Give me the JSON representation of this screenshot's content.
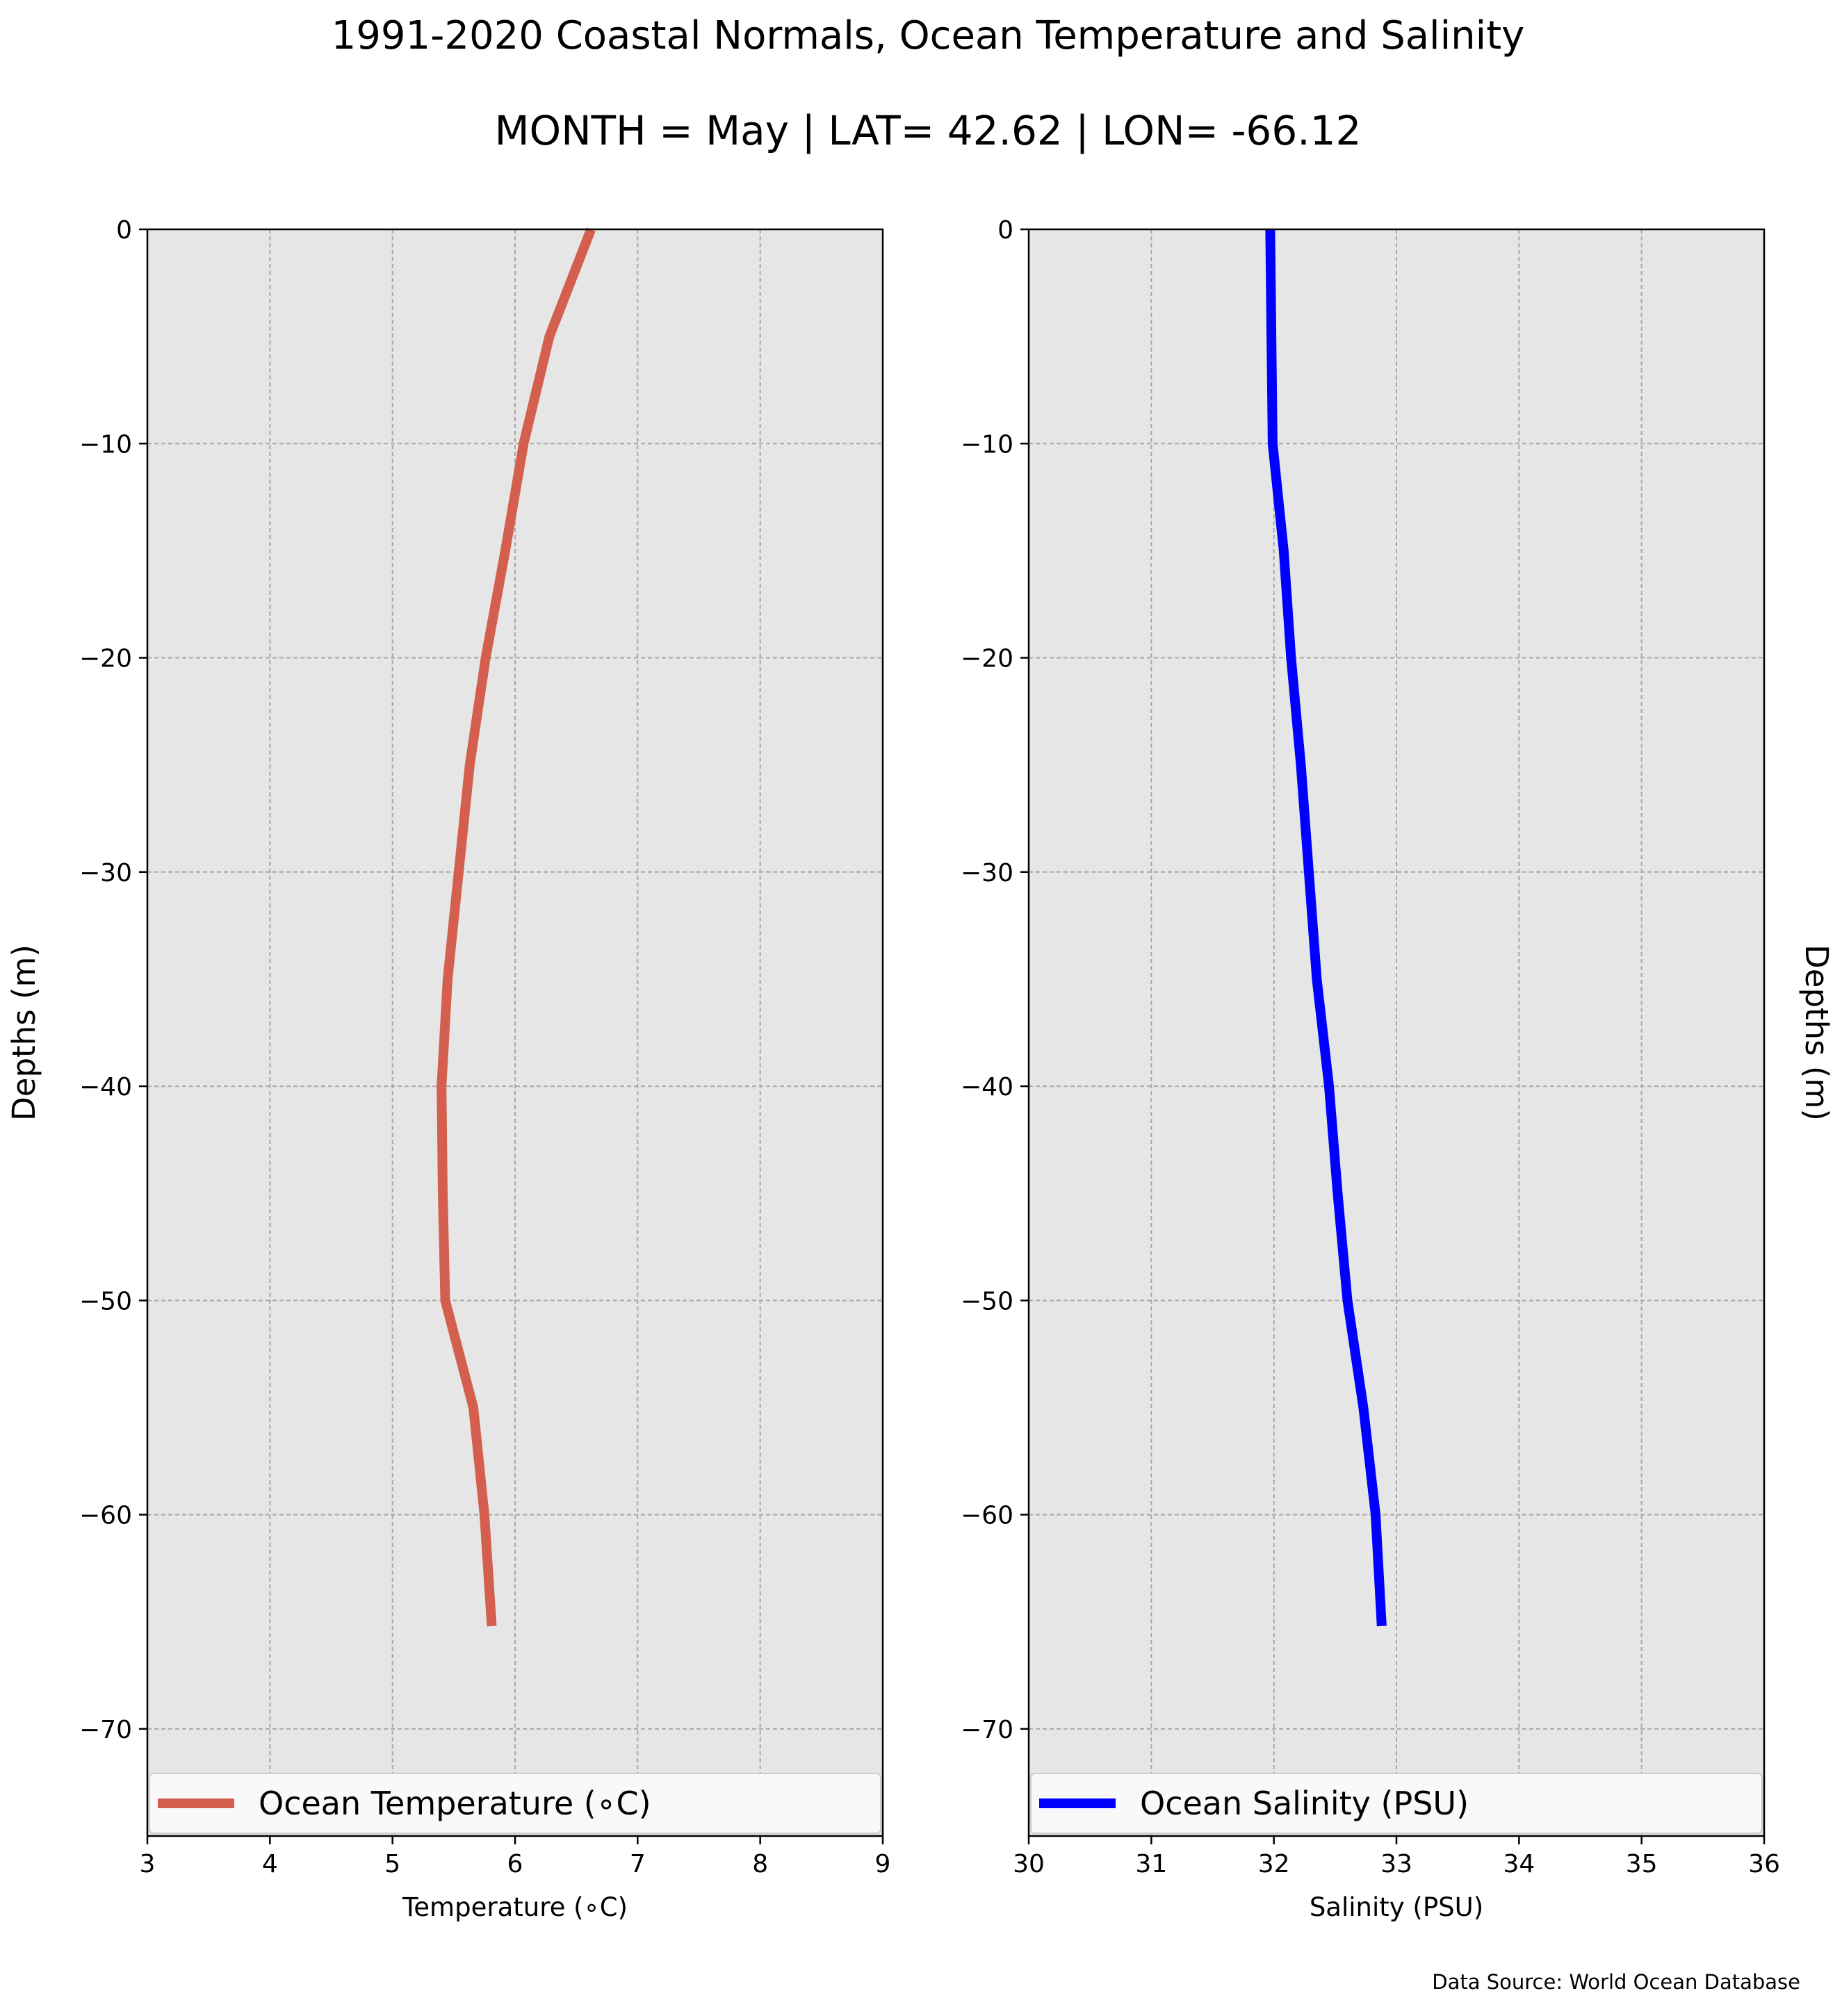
{
  "figure": {
    "title_line1": "1991-2020 Coastal Normals, Ocean Temperature and Salinity",
    "title_line2": "MONTH = May | LAT= 42.62 | LON= -66.12",
    "source": "Data Source: World Ocean Database",
    "background": "#ffffff"
  },
  "chart_data": [
    {
      "type": "line",
      "xlabel": "Temperature ($^\\circ$C)",
      "xlabel_display": "Temperature (∘C)",
      "ylabel": "Depths (m)",
      "xlim": [
        3,
        9
      ],
      "ylim": [
        -75,
        0
      ],
      "xticks": [
        3,
        4,
        5,
        6,
        7,
        8,
        9
      ],
      "yticks": [
        0,
        -10,
        -20,
        -30,
        -40,
        -50,
        -60,
        -70
      ],
      "ytick_labels": [
        "0",
        "−10",
        "−20",
        "−30",
        "−40",
        "−50",
        "−60",
        "−70"
      ],
      "grid": true,
      "legend_placement": "bottom",
      "plot_background": "#e6e6e6",
      "series": [
        {
          "name": "Ocean Temperature (∘C)",
          "color": "#d45f4e",
          "x": [
            6.62,
            6.28,
            6.07,
            5.92,
            5.76,
            5.63,
            5.45,
            5.4,
            5.41,
            5.43,
            5.66,
            5.75,
            5.81
          ],
          "y": [
            0,
            -5,
            -10,
            -15,
            -20,
            -25,
            -35,
            -40,
            -45,
            -50,
            -55,
            -60,
            -65.2
          ]
        }
      ]
    },
    {
      "type": "line",
      "xlabel": "Salinity (PSU)",
      "ylabel": "Depths (m)",
      "xlim": [
        30,
        36
      ],
      "ylim": [
        -75,
        0
      ],
      "xticks": [
        30,
        31,
        32,
        33,
        34,
        35,
        36
      ],
      "yticks": [
        0,
        -10,
        -20,
        -30,
        -40,
        -50,
        -60,
        -70
      ],
      "ytick_labels": [
        "0",
        "−10",
        "−20",
        "−30",
        "−40",
        "−50",
        "−60",
        "−70"
      ],
      "grid": true,
      "legend_placement": "bottom",
      "plot_background": "#e6e6e6",
      "series": [
        {
          "name": "Ocean Salinity (PSU)",
          "color": "#0000ff",
          "x": [
            31.97,
            31.98,
            31.99,
            32.08,
            32.14,
            32.22,
            32.35,
            32.45,
            32.52,
            32.6,
            32.73,
            32.83,
            32.88
          ],
          "y": [
            0,
            -5,
            -10,
            -15,
            -20,
            -25,
            -35,
            -40,
            -45,
            -50,
            -55,
            -60,
            -65.2
          ]
        }
      ]
    }
  ]
}
